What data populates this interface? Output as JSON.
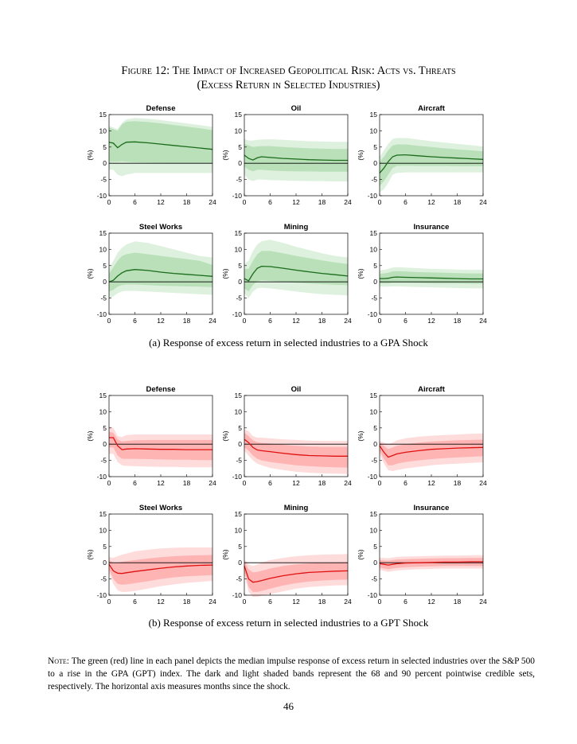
{
  "figure": {
    "title_line1": "Figure 12: The Impact of Increased Geopolitical Risk: Acts vs. Threats",
    "title_line2": "(Excess Return in Selected Industries)"
  },
  "colors": {
    "gpa_line": "#1a6b1a",
    "gpa_band_dark": "#b9e0b9",
    "gpa_band_light": "#def1de",
    "gpt_line": "#e01010",
    "gpt_band_dark": "#ffb4b4",
    "gpt_band_light": "#ffdcdc"
  },
  "panel_a_caption": "(a) Response of excess return in selected industries to a GPA Shock",
  "panel_b_caption": "(b) Response of excess return in selected industries to a GPT Shock",
  "note": {
    "label": "Note:",
    "text": "The green (red) line in each panel depicts the median impulse response of excess return in selected industries over the S&P 500 to a rise in the GPA (GPT) index. The dark and light shaded bands represent the 68 and 90 percent pointwise credible sets, respectively. The horizontal axis measures months since the shock."
  },
  "page_number": "46",
  "chart_data": [
    {
      "type": "area",
      "group": "GPA",
      "title": "Defense",
      "ylabel": "(%)",
      "xlim": [
        0,
        24
      ],
      "ylim": [
        -10,
        15
      ],
      "xticks": [
        "0",
        "6",
        "12",
        "18",
        "24"
      ],
      "yticks": [
        "15",
        "10",
        "5",
        "0",
        "-5",
        "-10"
      ],
      "x": [
        0,
        1,
        2,
        3,
        4,
        6,
        9,
        12,
        15,
        18,
        21,
        24
      ],
      "median": [
        6.5,
        6.2,
        4.8,
        5.8,
        6.5,
        6.6,
        6.3,
        5.9,
        5.5,
        5.1,
        4.7,
        4.3
      ],
      "band68_lo": [
        0.5,
        0.5,
        0.5,
        0.6,
        0.5,
        0.3,
        0.2,
        0.1,
        0.0,
        0.0,
        0.0,
        0.0
      ],
      "band68_hi": [
        11.0,
        10.5,
        10.0,
        12.0,
        12.8,
        13.0,
        12.7,
        12.3,
        11.8,
        11.3,
        10.8,
        10.2
      ],
      "band90_lo": [
        -2.0,
        -2.0,
        -3.5,
        -4.0,
        -3.5,
        -3.0,
        -3.0,
        -3.0,
        -3.0,
        -3.0,
        -3.0,
        -3.0
      ],
      "band90_hi": [
        11.5,
        11.0,
        10.5,
        12.5,
        13.5,
        14.0,
        13.7,
        13.3,
        12.8,
        12.3,
        11.8,
        11.2
      ]
    },
    {
      "type": "area",
      "group": "GPA",
      "title": "Oil",
      "ylabel": "(%)",
      "xlim": [
        0,
        24
      ],
      "ylim": [
        -10,
        15
      ],
      "xticks": [
        "0",
        "6",
        "12",
        "18",
        "24"
      ],
      "yticks": [
        "15",
        "10",
        "5",
        "0",
        "-5",
        "-10"
      ],
      "x": [
        0,
        1,
        2,
        3,
        4,
        6,
        9,
        12,
        15,
        18,
        21,
        24
      ],
      "median": [
        2.5,
        1.5,
        1.0,
        1.7,
        2.0,
        1.8,
        1.5,
        1.3,
        1.1,
        1.0,
        0.9,
        0.9
      ],
      "band68_lo": [
        -1.0,
        -2.0,
        -2.5,
        -2.0,
        -2.0,
        -2.2,
        -2.4,
        -2.5,
        -2.5,
        -2.6,
        -2.6,
        -2.6
      ],
      "band68_hi": [
        6.0,
        5.5,
        5.0,
        5.2,
        5.3,
        5.3,
        5.0,
        4.8,
        4.6,
        4.5,
        4.4,
        4.4
      ],
      "band90_lo": [
        -3.5,
        -5.0,
        -5.5,
        -5.0,
        -5.0,
        -5.2,
        -5.3,
        -5.4,
        -5.5,
        -5.5,
        -5.6,
        -5.6
      ],
      "band90_hi": [
        7.5,
        7.0,
        7.0,
        7.2,
        7.3,
        7.4,
        7.2,
        7.0,
        6.8,
        6.7,
        6.6,
        6.6
      ]
    },
    {
      "type": "area",
      "group": "GPA",
      "title": "Aircraft",
      "ylabel": "(%)",
      "xlim": [
        0,
        24
      ],
      "ylim": [
        -10,
        15
      ],
      "xticks": [
        "0",
        "6",
        "12",
        "18",
        "24"
      ],
      "yticks": [
        "15",
        "10",
        "5",
        "0",
        "-5",
        "-10"
      ],
      "x": [
        0,
        1,
        2,
        3,
        4,
        6,
        9,
        12,
        15,
        18,
        21,
        24
      ],
      "median": [
        -3.0,
        -1.5,
        0.5,
        2.0,
        2.5,
        2.6,
        2.3,
        2.0,
        1.8,
        1.6,
        1.4,
        1.2
      ],
      "band68_lo": [
        -7.0,
        -5.5,
        -3.5,
        -1.5,
        -0.8,
        -0.7,
        -0.8,
        -0.8,
        -0.8,
        -0.9,
        -0.9,
        -0.9
      ],
      "band68_hi": [
        0.5,
        2.0,
        4.0,
        5.5,
        5.8,
        5.8,
        5.4,
        5.0,
        4.6,
        4.3,
        4.0,
        3.7
      ],
      "band90_lo": [
        -9.0,
        -8.0,
        -6.0,
        -3.5,
        -3.0,
        -2.8,
        -2.8,
        -2.8,
        -2.8,
        -2.8,
        -2.8,
        -2.8
      ],
      "band90_hi": [
        2.0,
        4.0,
        6.0,
        7.5,
        7.8,
        7.8,
        7.3,
        6.8,
        6.4,
        6.0,
        5.6,
        5.2
      ]
    },
    {
      "type": "area",
      "group": "GPA",
      "title": "Steel Works",
      "ylabel": "(%)",
      "xlim": [
        0,
        24
      ],
      "ylim": [
        -10,
        15
      ],
      "xticks": [
        "0",
        "6",
        "12",
        "18",
        "24"
      ],
      "yticks": [
        "15",
        "10",
        "5",
        "0",
        "-5",
        "-10"
      ],
      "x": [
        0,
        1,
        2,
        3,
        4,
        6,
        9,
        12,
        15,
        18,
        21,
        24
      ],
      "median": [
        0.0,
        0.5,
        1.8,
        2.8,
        3.4,
        3.8,
        3.5,
        3.0,
        2.6,
        2.3,
        2.0,
        1.7
      ],
      "band68_lo": [
        -3.0,
        -2.5,
        -1.5,
        -1.0,
        -0.8,
        -0.8,
        -1.0,
        -1.2,
        -1.3,
        -1.4,
        -1.5,
        -1.6
      ],
      "band68_hi": [
        2.5,
        4.5,
        6.5,
        8.0,
        8.5,
        9.0,
        8.5,
        8.0,
        7.5,
        7.0,
        6.5,
        5.2
      ],
      "band90_lo": [
        -5.0,
        -4.5,
        -3.5,
        -3.0,
        -2.8,
        -2.8,
        -3.0,
        -3.2,
        -3.4,
        -3.6,
        -3.8,
        -4.0
      ],
      "band90_hi": [
        4.0,
        6.5,
        9.0,
        10.5,
        11.5,
        12.5,
        12.0,
        11.0,
        10.0,
        9.0,
        8.0,
        7.5
      ]
    },
    {
      "type": "area",
      "group": "GPA",
      "title": "Mining",
      "ylabel": "(%)",
      "xlim": [
        0,
        24
      ],
      "ylim": [
        -10,
        15
      ],
      "xticks": [
        "0",
        "6",
        "12",
        "18",
        "24"
      ],
      "yticks": [
        "15",
        "10",
        "5",
        "0",
        "-5",
        "-10"
      ],
      "x": [
        0,
        1,
        2,
        3,
        4,
        6,
        9,
        12,
        15,
        18,
        21,
        24
      ],
      "median": [
        1.0,
        0.3,
        2.5,
        4.2,
        4.8,
        4.7,
        4.2,
        3.6,
        3.1,
        2.6,
        2.2,
        1.8
      ],
      "band68_lo": [
        -2.0,
        -3.0,
        -1.0,
        0.2,
        0.5,
        0.3,
        0.0,
        -0.3,
        -0.5,
        -0.7,
        -0.9,
        -1.0
      ],
      "band68_hi": [
        4.0,
        4.0,
        6.5,
        8.5,
        9.5,
        9.5,
        8.8,
        8.0,
        7.3,
        6.6,
        6.0,
        5.5
      ],
      "band90_lo": [
        -3.5,
        -5.0,
        -3.0,
        -2.0,
        -1.8,
        -2.0,
        -2.5,
        -3.0,
        -3.4,
        -3.8,
        -4.0,
        -4.2
      ],
      "band90_hi": [
        5.5,
        6.5,
        9.5,
        11.5,
        12.5,
        13.0,
        12.0,
        10.8,
        9.8,
        8.8,
        8.0,
        7.5
      ]
    },
    {
      "type": "area",
      "group": "GPA",
      "title": "Insurance",
      "ylabel": "(%)",
      "xlim": [
        0,
        24
      ],
      "ylim": [
        -10,
        15
      ],
      "xticks": [
        "0",
        "6",
        "12",
        "18",
        "24"
      ],
      "yticks": [
        "15",
        "10",
        "5",
        "0",
        "-5",
        "-10"
      ],
      "x": [
        0,
        1,
        2,
        3,
        4,
        6,
        9,
        12,
        15,
        18,
        21,
        24
      ],
      "median": [
        1.0,
        1.0,
        1.1,
        1.4,
        1.5,
        1.4,
        1.3,
        1.2,
        1.1,
        1.0,
        0.9,
        0.9
      ],
      "band68_lo": [
        -0.5,
        -0.5,
        -0.5,
        -0.3,
        -0.3,
        -0.3,
        -0.4,
        -0.5,
        -0.5,
        -0.5,
        -0.6,
        -0.6
      ],
      "band68_hi": [
        2.5,
        2.6,
        2.8,
        3.2,
        3.3,
        3.2,
        3.0,
        2.9,
        2.8,
        2.7,
        2.6,
        2.6
      ],
      "band90_lo": [
        -1.5,
        -1.5,
        -1.5,
        -1.4,
        -1.4,
        -1.5,
        -1.6,
        -1.7,
        -1.8,
        -1.9,
        -2.0,
        -2.0
      ],
      "band90_hi": [
        3.5,
        3.7,
        4.0,
        4.4,
        4.5,
        4.4,
        4.2,
        4.0,
        3.9,
        3.8,
        3.7,
        3.7
      ]
    },
    {
      "type": "area",
      "group": "GPT",
      "title": "Defense",
      "ylabel": "(%)",
      "xlim": [
        0,
        24
      ],
      "ylim": [
        -10,
        15
      ],
      "xticks": [
        "0",
        "6",
        "12",
        "18",
        "24"
      ],
      "yticks": [
        "15",
        "10",
        "5",
        "0",
        "-5",
        "-10"
      ],
      "x": [
        0,
        1,
        2,
        3,
        4,
        6,
        9,
        12,
        15,
        18,
        21,
        24
      ],
      "median": [
        2.0,
        2.0,
        -0.5,
        -1.7,
        -1.5,
        -1.4,
        -1.5,
        -1.6,
        -1.6,
        -1.7,
        -1.7,
        -1.7
      ],
      "band68_lo": [
        -1.0,
        -1.0,
        -3.5,
        -4.5,
        -4.5,
        -4.5,
        -4.6,
        -4.7,
        -4.8,
        -4.8,
        -4.9,
        -4.9
      ],
      "band68_hi": [
        3.8,
        3.5,
        1.5,
        0.8,
        1.0,
        1.2,
        1.3,
        1.3,
        1.3,
        1.3,
        1.3,
        1.3
      ],
      "band90_lo": [
        -3.0,
        -3.0,
        -5.5,
        -6.5,
        -6.7,
        -6.8,
        -6.9,
        -7.0,
        -7.0,
        -7.1,
        -7.1,
        -7.1
      ],
      "band90_hi": [
        5.5,
        5.0,
        2.5,
        2.2,
        2.8,
        3.0,
        3.0,
        3.0,
        3.0,
        3.0,
        3.0,
        3.0
      ]
    },
    {
      "type": "area",
      "group": "GPT",
      "title": "Oil",
      "ylabel": "(%)",
      "xlim": [
        0,
        24
      ],
      "ylim": [
        -10,
        15
      ],
      "xticks": [
        "0",
        "6",
        "12",
        "18",
        "24"
      ],
      "yticks": [
        "15",
        "10",
        "5",
        "0",
        "-5",
        "-10"
      ],
      "x": [
        0,
        1,
        2,
        3,
        4,
        6,
        9,
        12,
        15,
        18,
        21,
        24
      ],
      "median": [
        1.5,
        0.5,
        -1.0,
        -1.8,
        -2.0,
        -2.3,
        -2.8,
        -3.2,
        -3.5,
        -3.6,
        -3.7,
        -3.7
      ],
      "band68_lo": [
        -1.0,
        -2.0,
        -3.5,
        -4.5,
        -5.0,
        -5.5,
        -6.0,
        -6.5,
        -6.8,
        -7.0,
        -7.1,
        -7.2
      ],
      "band68_hi": [
        3.5,
        2.5,
        1.2,
        0.6,
        0.4,
        0.2,
        -0.2,
        -0.5,
        -0.7,
        -0.8,
        -0.8,
        -0.8
      ],
      "band90_lo": [
        -2.0,
        -3.5,
        -5.0,
        -6.0,
        -6.5,
        -7.3,
        -8.0,
        -8.5,
        -8.8,
        -9.0,
        -9.1,
        -9.2
      ],
      "band90_hi": [
        4.5,
        4.0,
        2.5,
        2.0,
        2.0,
        1.8,
        1.5,
        1.3,
        1.1,
        1.0,
        1.0,
        1.0
      ]
    },
    {
      "type": "area",
      "group": "GPT",
      "title": "Aircraft",
      "ylabel": "(%)",
      "xlim": [
        0,
        24
      ],
      "ylim": [
        -10,
        15
      ],
      "xticks": [
        "0",
        "6",
        "12",
        "18",
        "24"
      ],
      "yticks": [
        "15",
        "10",
        "5",
        "0",
        "-5",
        "-10"
      ],
      "x": [
        0,
        1,
        2,
        3,
        4,
        6,
        9,
        12,
        15,
        18,
        21,
        24
      ],
      "median": [
        -0.5,
        -2.5,
        -4.0,
        -3.5,
        -3.0,
        -2.5,
        -2.0,
        -1.6,
        -1.4,
        -1.2,
        -1.1,
        -1.0
      ],
      "band68_lo": [
        -2.0,
        -4.5,
        -6.5,
        -6.5,
        -6.0,
        -5.5,
        -5.0,
        -4.6,
        -4.3,
        -4.1,
        -3.9,
        -3.7
      ],
      "band68_hi": [
        0.5,
        -0.5,
        -1.5,
        -1.0,
        -0.5,
        0.0,
        0.5,
        0.8,
        1.0,
        1.2,
        1.3,
        1.4
      ],
      "band90_lo": [
        -3.0,
        -6.0,
        -8.0,
        -8.3,
        -8.0,
        -7.5,
        -7.0,
        -6.5,
        -6.2,
        -6.0,
        -5.8,
        -5.6
      ],
      "band90_hi": [
        1.0,
        0.5,
        0.0,
        0.5,
        1.2,
        1.8,
        2.3,
        2.6,
        2.8,
        3.0,
        3.2,
        3.3
      ]
    },
    {
      "type": "area",
      "group": "GPT",
      "title": "Steel Works",
      "ylabel": "(%)",
      "xlim": [
        0,
        24
      ],
      "ylim": [
        -10,
        15
      ],
      "xticks": [
        "0",
        "6",
        "12",
        "18",
        "24"
      ],
      "yticks": [
        "15",
        "10",
        "5",
        "0",
        "-5",
        "-10"
      ],
      "x": [
        0,
        1,
        2,
        3,
        4,
        6,
        9,
        12,
        15,
        18,
        21,
        24
      ],
      "median": [
        -0.5,
        -2.5,
        -3.2,
        -3.3,
        -3.1,
        -2.7,
        -2.2,
        -1.7,
        -1.3,
        -1.0,
        -0.8,
        -0.7
      ],
      "band68_lo": [
        -2.0,
        -5.0,
        -6.5,
        -6.8,
        -6.7,
        -6.3,
        -5.7,
        -5.0,
        -4.5,
        -4.2,
        -4.0,
        -3.8
      ],
      "band68_hi": [
        0.8,
        0.0,
        0.0,
        0.3,
        0.5,
        0.8,
        1.3,
        1.7,
        2.0,
        2.2,
        2.3,
        2.4
      ],
      "band90_lo": [
        -3.0,
        -6.5,
        -8.5,
        -9.0,
        -9.0,
        -8.7,
        -8.0,
        -7.2,
        -6.7,
        -6.2,
        -5.9,
        -5.6
      ],
      "band90_hi": [
        1.8,
        1.5,
        2.0,
        2.5,
        2.8,
        3.5,
        4.0,
        4.4,
        4.6,
        4.7,
        4.7,
        4.7
      ]
    },
    {
      "type": "area",
      "group": "GPT",
      "title": "Mining",
      "ylabel": "(%)",
      "xlim": [
        0,
        24
      ],
      "ylim": [
        -10,
        15
      ],
      "xticks": [
        "0",
        "6",
        "12",
        "18",
        "24"
      ],
      "yticks": [
        "15",
        "10",
        "5",
        "0",
        "-5",
        "-10"
      ],
      "x": [
        0,
        1,
        2,
        3,
        4,
        6,
        9,
        12,
        15,
        18,
        21,
        24
      ],
      "median": [
        -1.0,
        -5.0,
        -6.0,
        -5.8,
        -5.5,
        -4.8,
        -4.0,
        -3.4,
        -3.0,
        -2.8,
        -2.6,
        -2.5
      ],
      "band68_lo": [
        -2.5,
        -7.5,
        -9.0,
        -9.0,
        -8.7,
        -8.0,
        -7.0,
        -6.3,
        -5.8,
        -5.5,
        -5.3,
        -5.2
      ],
      "band68_hi": [
        0.5,
        -2.0,
        -3.0,
        -2.8,
        -2.5,
        -1.8,
        -1.0,
        -0.5,
        -0.2,
        0.0,
        0.1,
        0.2
      ],
      "band90_lo": [
        -3.5,
        -9.0,
        -10.5,
        -10.5,
        -10.2,
        -9.7,
        -8.8,
        -8.0,
        -7.5,
        -7.2,
        -7.0,
        -6.9
      ],
      "band90_hi": [
        1.0,
        -0.5,
        -1.0,
        -0.5,
        0.0,
        0.8,
        1.5,
        2.0,
        2.3,
        2.5,
        2.6,
        2.7
      ]
    },
    {
      "type": "area",
      "group": "GPT",
      "title": "Insurance",
      "ylabel": "(%)",
      "xlim": [
        0,
        24
      ],
      "ylim": [
        -10,
        15
      ],
      "xticks": [
        "0",
        "6",
        "12",
        "18",
        "24"
      ],
      "yticks": [
        "15",
        "10",
        "5",
        "0",
        "-5",
        "-10"
      ],
      "x": [
        0,
        1,
        2,
        3,
        4,
        6,
        9,
        12,
        15,
        18,
        21,
        24
      ],
      "median": [
        -0.3,
        -0.5,
        -0.7,
        -0.5,
        -0.3,
        -0.1,
        0.0,
        0.1,
        0.2,
        0.2,
        0.3,
        0.3
      ],
      "band68_lo": [
        -1.5,
        -1.8,
        -2.0,
        -1.8,
        -1.6,
        -1.4,
        -1.2,
        -1.1,
        -1.0,
        -1.0,
        -1.0,
        -1.0
      ],
      "band68_hi": [
        0.8,
        0.7,
        0.6,
        0.8,
        1.0,
        1.1,
        1.2,
        1.3,
        1.4,
        1.4,
        1.5,
        1.5
      ],
      "band90_lo": [
        -2.2,
        -2.5,
        -2.8,
        -2.6,
        -2.4,
        -2.2,
        -2.0,
        -1.9,
        -1.8,
        -1.8,
        -1.8,
        -1.8
      ],
      "band90_hi": [
        1.5,
        1.5,
        1.4,
        1.6,
        1.8,
        1.9,
        2.0,
        2.1,
        2.2,
        2.2,
        2.3,
        2.3
      ]
    }
  ]
}
